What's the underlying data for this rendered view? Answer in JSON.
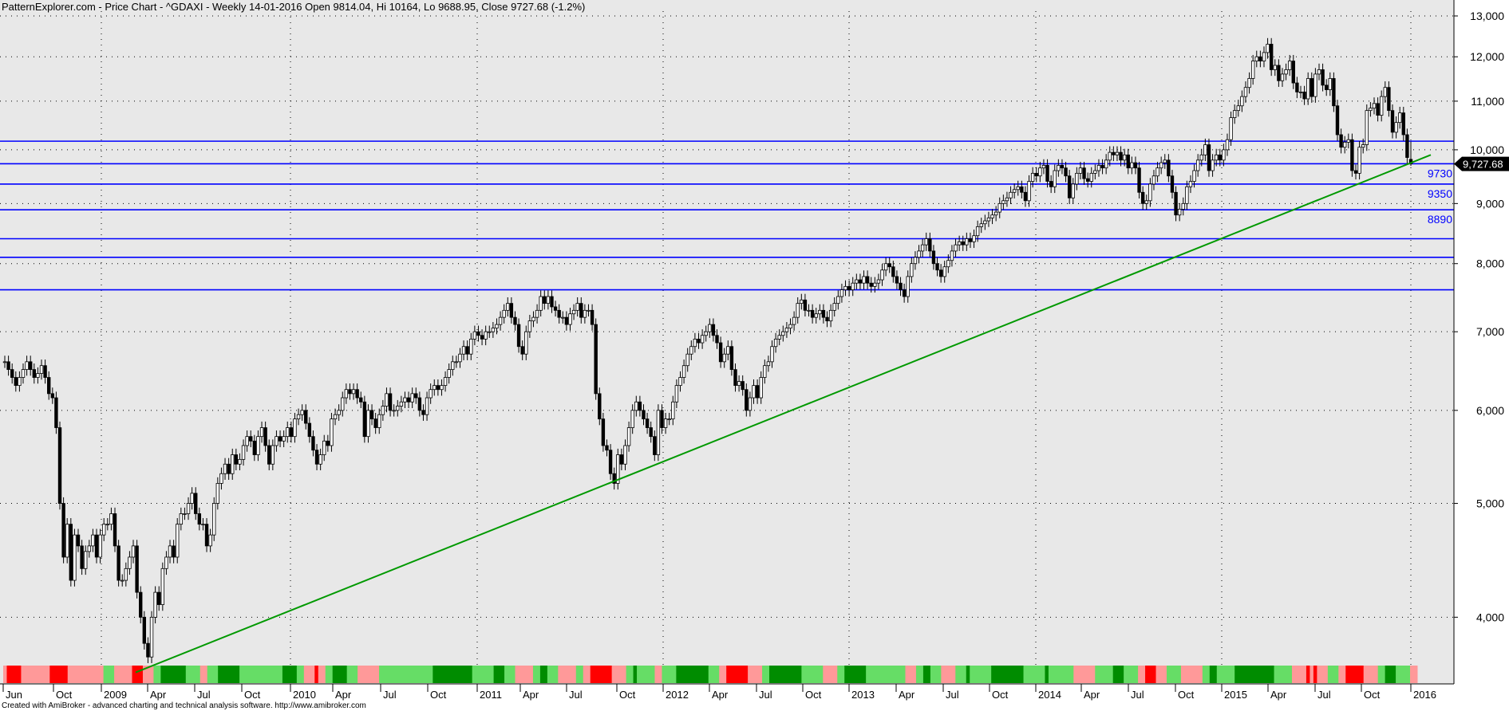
{
  "header": {
    "title": "PatternExplorer.com - Price Chart - ^GDAXI - Weekly 14-01-2016 Open 9814.04, Hi 10164, Lo 9688.95, Close 9727.68 (-1.2%)"
  },
  "footer": {
    "text": "Created with AmiBroker - advanced charting and technical analysis software. http://www.amibroker.com"
  },
  "chart_data": {
    "type": "candlestick",
    "symbol": "^GDAXI",
    "interval": "Weekly",
    "y_scale": "log",
    "ylim": [
      3500,
      13300
    ],
    "grid": true,
    "y_ticks": [
      {
        "v": 13000,
        "label": "13,000"
      },
      {
        "v": 12000,
        "label": "12,000"
      },
      {
        "v": 11000,
        "label": "11,000"
      },
      {
        "v": 10000,
        "label": "10,000"
      },
      {
        "v": 9000,
        "label": "9,000"
      },
      {
        "v": 8000,
        "label": "8,000"
      },
      {
        "v": 7000,
        "label": "7,000"
      },
      {
        "v": 6000,
        "label": "6,000"
      },
      {
        "v": 5000,
        "label": "5,000"
      },
      {
        "v": 4000,
        "label": "4,000"
      }
    ],
    "x_ticks": [
      "Jun",
      "Oct",
      "2009",
      "Apr",
      "Jul",
      "Oct",
      "2010",
      "Apr",
      "Jul",
      "Oct",
      "2011",
      "Apr",
      "Jul",
      "Oct",
      "2012",
      "Apr",
      "Jul",
      "Oct",
      "2013",
      "Apr",
      "Jul",
      "Oct",
      "2014",
      "Apr",
      "Jul",
      "Oct",
      "2015",
      "Apr",
      "Jul",
      "Oct",
      "2016"
    ],
    "last": {
      "open": 9814.04,
      "high": 10164,
      "low": 9688.95,
      "close": 9727.68,
      "change": "-1.2%",
      "label": "9,727.68"
    },
    "closes": [
      6600,
      6500,
      6400,
      6300,
      6400,
      6500,
      6600,
      6500,
      6400,
      6450,
      6550,
      6400,
      6200,
      6150,
      5800,
      5000,
      4500,
      4800,
      4300,
      4700,
      4600,
      4400,
      4550,
      4600,
      4700,
      4500,
      4700,
      4800,
      4800,
      4900,
      4600,
      4300,
      4300,
      4400,
      4500,
      4600,
      4200,
      4000,
      3800,
      3700,
      4000,
      4200,
      4100,
      4400,
      4500,
      4600,
      4500,
      4800,
      4900,
      4900,
      5000,
      5100,
      4900,
      4800,
      4800,
      4600,
      4700,
      5000,
      5200,
      5300,
      5400,
      5300,
      5500,
      5400,
      5450,
      5600,
      5700,
      5650,
      5500,
      5700,
      5800,
      5600,
      5400,
      5600,
      5700,
      5650,
      5700,
      5800,
      5700,
      5900,
      5950,
      6000,
      5850,
      5700,
      5550,
      5400,
      5500,
      5650,
      5600,
      5900,
      5950,
      6000,
      6150,
      6250,
      6200,
      6250,
      6150,
      6100,
      5700,
      6000,
      5900,
      5800,
      5950,
      6050,
      6200,
      6000,
      6000,
      6050,
      6100,
      6150,
      6100,
      6200,
      6150,
      6000,
      5950,
      6150,
      6250,
      6300,
      6250,
      6300,
      6400,
      6500,
      6600,
      6600,
      6700,
      6800,
      6700,
      6900,
      7000,
      6950,
      6900,
      7000,
      7000,
      7050,
      7100,
      7200,
      7300,
      7400,
      7200,
      7100,
      6800,
      6700,
      7000,
      7150,
      7200,
      7300,
      7500,
      7400,
      7500,
      7350,
      7300,
      7200,
      7200,
      7100,
      7250,
      7300,
      7400,
      7200,
      7300,
      7300,
      7100,
      6200,
      5900,
      5600,
      5550,
      5300,
      5200,
      5500,
      5400,
      5600,
      5800,
      6000,
      6100,
      6000,
      5900,
      5800,
      5700,
      5500,
      6000,
      5800,
      5900,
      5900,
      6100,
      6300,
      6400,
      6550,
      6700,
      6800,
      6900,
      6850,
      6950,
      7000,
      7100,
      6950,
      6850,
      6600,
      6700,
      6800,
      6500,
      6300,
      6350,
      6250,
      6000,
      6150,
      6300,
      6150,
      6400,
      6550,
      6600,
      6800,
      6900,
      6950,
      7000,
      7050,
      7100,
      7200,
      7400,
      7450,
      7300,
      7300,
      7200,
      7250,
      7300,
      7200,
      7150,
      7300,
      7400,
      7500,
      7600,
      7650,
      7600,
      7700,
      7750,
      7700,
      7800,
      7700,
      7650,
      7700,
      7750,
      7900,
      8000,
      7950,
      7800,
      7700,
      7600,
      7500,
      7800,
      8000,
      8100,
      8200,
      8300,
      8400,
      8200,
      8000,
      7900,
      7800,
      7950,
      8050,
      8200,
      8300,
      8350,
      8300,
      8400,
      8350,
      8450,
      8600,
      8650,
      8700,
      8750,
      8800,
      8850,
      9000,
      9050,
      9100,
      9200,
      9250,
      9300,
      9200,
      9050,
      9400,
      9550,
      9500,
      9650,
      9700,
      9400,
      9300,
      9600,
      9700,
      9650,
      9500,
      9100,
      9350,
      9550,
      9650,
      9450,
      9400,
      9550,
      9600,
      9700,
      9650,
      9800,
      9950,
      9900,
      9950,
      9800,
      9900,
      9650,
      9750,
      9650,
      9200,
      9000,
      9050,
      9350,
      9500,
      9650,
      9750,
      9800,
      9500,
      9200,
      8800,
      8900,
      9000,
      9300,
      9400,
      9600,
      9800,
      9900,
      10100,
      9600,
      9800,
      9900,
      9800,
      10000,
      10200,
      10650,
      10800,
      10900,
      11100,
      11300,
      11500,
      11900,
      12000,
      11900,
      12100,
      12300,
      11700,
      11800,
      11450,
      11600,
      11700,
      11900,
      11400,
      11200,
      11200,
      11050,
      11500,
      11100,
      11600,
      11700,
      11350,
      11250,
      11500,
      10900,
      10300,
      10050,
      10150,
      10200,
      9600,
      9550,
      10050,
      10100,
      10800,
      10850,
      10950,
      10700,
      11100,
      11300,
      10800,
      10350,
      10550,
      10750,
      10300,
      9850,
      9727.68
    ],
    "support_resistance": [
      {
        "value": 10170,
        "label": ""
      },
      {
        "value": 9730,
        "label": "9730"
      },
      {
        "value": 9350,
        "label": "9350"
      },
      {
        "value": 8890,
        "label": "8890"
      },
      {
        "value": 8400,
        "label": ""
      },
      {
        "value": 8100,
        "label": ""
      },
      {
        "value": 7600,
        "label": ""
      }
    ],
    "trendline": {
      "from": {
        "date": "2009-03",
        "price": 3590
      },
      "to": {
        "date": "2016-02",
        "price": 9900
      }
    },
    "ribbon": [
      [
        "r",
        1
      ],
      [
        "R",
        4
      ],
      [
        "r",
        8
      ],
      [
        "R",
        5
      ],
      [
        "r",
        10
      ],
      [
        "g",
        3
      ],
      [
        "r",
        5
      ],
      [
        "R",
        3
      ],
      [
        "r",
        3
      ],
      [
        "g",
        2
      ],
      [
        "G",
        7
      ],
      [
        "g",
        4
      ],
      [
        "r",
        2
      ],
      [
        "g",
        3
      ],
      [
        "G",
        6
      ],
      [
        "g",
        12
      ],
      [
        "G",
        4
      ],
      [
        "g",
        2
      ],
      [
        "r",
        3
      ],
      [
        "R",
        1
      ],
      [
        "r",
        2
      ],
      [
        "g",
        2
      ],
      [
        "G",
        4
      ],
      [
        "g",
        3
      ],
      [
        "r",
        6
      ],
      [
        "g",
        15
      ],
      [
        "G",
        11
      ],
      [
        "g",
        6
      ],
      [
        "G",
        3
      ],
      [
        "g",
        3
      ],
      [
        "r",
        5
      ],
      [
        "g",
        2
      ],
      [
        "G",
        2
      ],
      [
        "g",
        3
      ],
      [
        "r",
        5
      ],
      [
        "g",
        2
      ],
      [
        "r",
        2
      ],
      [
        "R",
        6
      ],
      [
        "r",
        4
      ],
      [
        "g",
        2
      ],
      [
        "G",
        1
      ],
      [
        "g",
        5
      ],
      [
        "r",
        2
      ],
      [
        "g",
        4
      ],
      [
        "G",
        9
      ],
      [
        "g",
        3
      ],
      [
        "r",
        2
      ],
      [
        "R",
        6
      ],
      [
        "r",
        4
      ],
      [
        "g",
        2
      ],
      [
        "G",
        9
      ],
      [
        "g",
        6
      ],
      [
        "r",
        4
      ],
      [
        "g",
        2
      ],
      [
        "G",
        6
      ],
      [
        "g",
        11
      ],
      [
        "r",
        3
      ],
      [
        "g",
        2
      ],
      [
        "G",
        2
      ],
      [
        "g",
        3
      ],
      [
        "r",
        4
      ],
      [
        "g",
        3
      ],
      [
        "G",
        1
      ],
      [
        "g",
        6
      ],
      [
        "G",
        9
      ],
      [
        "g",
        6
      ],
      [
        "G",
        1
      ],
      [
        "g",
        7
      ],
      [
        "r",
        6
      ],
      [
        "g",
        5
      ],
      [
        "G",
        3
      ],
      [
        "g",
        4
      ],
      [
        "r",
        2
      ],
      [
        "R",
        3
      ],
      [
        "r",
        3
      ],
      [
        "g",
        4
      ],
      [
        "r",
        6
      ],
      [
        "g",
        2
      ],
      [
        "G",
        2
      ],
      [
        "g",
        5
      ],
      [
        "G",
        11
      ],
      [
        "g",
        5
      ],
      [
        "r",
        4
      ],
      [
        "R",
        1
      ],
      [
        "r",
        1
      ],
      [
        "R",
        1
      ],
      [
        "r",
        3
      ],
      [
        "g",
        3
      ],
      [
        "r",
        2
      ],
      [
        "R",
        5
      ],
      [
        "r",
        4
      ],
      [
        "g",
        2
      ],
      [
        "G",
        3
      ],
      [
        "g",
        4
      ],
      [
        "r",
        2
      ]
    ],
    "colors": {
      "background": "#e8e8e8",
      "up_fill": "#ffffff",
      "down_fill": "#000000",
      "levels": "#0000ff",
      "trendline": "#009900",
      "ribbon_R": "#ff0000",
      "ribbon_r": "#ff9999",
      "ribbon_G": "#008c00",
      "ribbon_g": "#66dd66"
    }
  }
}
